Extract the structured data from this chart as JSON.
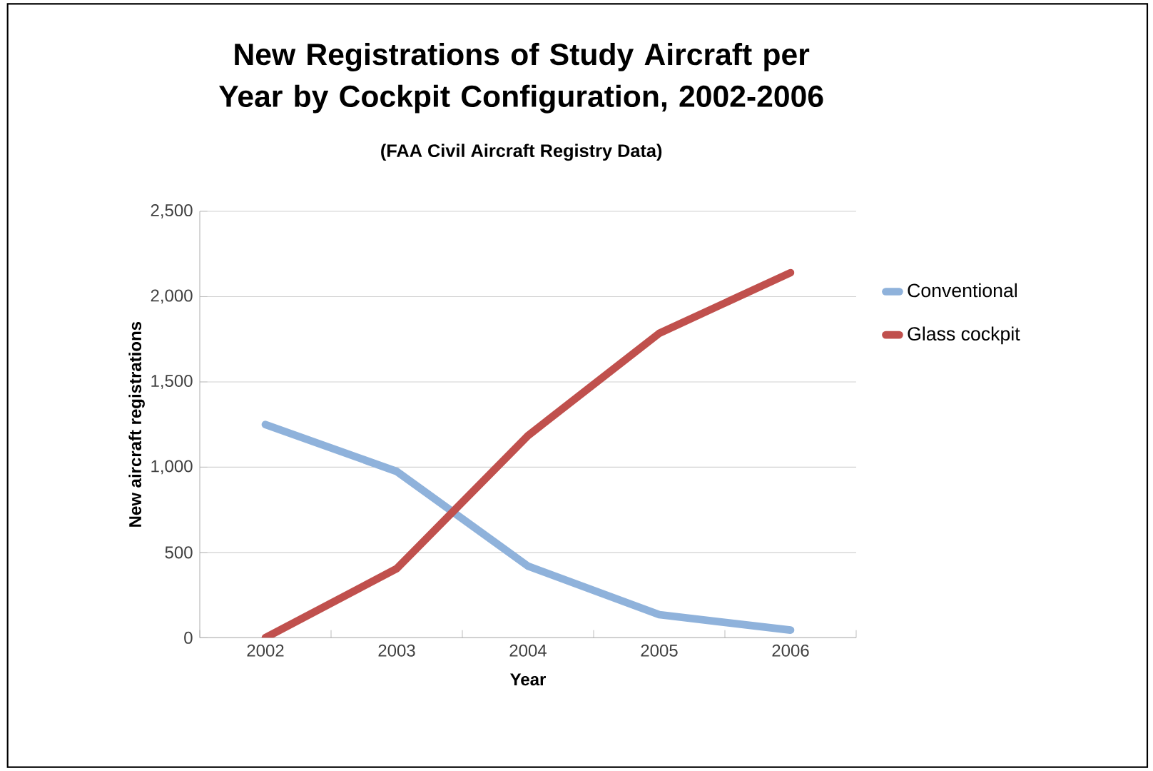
{
  "chart_data": {
    "type": "line",
    "title": "New Registrations of Study Aircraft per Year by Cockpit Configuration, 2002-2006",
    "subtitle": "(FAA Civil Aircraft Registry Data)",
    "xlabel": "Year",
    "ylabel": "New  aircraft registrations",
    "categories": [
      "2002",
      "2003",
      "2004",
      "2005",
      "2006"
    ],
    "series": [
      {
        "name": "Conventional",
        "color": "#8fb2db",
        "values": [
          1250,
          975,
          420,
          135,
          45
        ]
      },
      {
        "name": "Glass cockpit",
        "color": "#c0504d",
        "values": [
          0,
          405,
          1185,
          1785,
          2140
        ]
      }
    ],
    "ylim": [
      0,
      2500
    ],
    "yticks": [
      {
        "value": 0,
        "label": "0"
      },
      {
        "value": 500,
        "label": "500"
      },
      {
        "value": 1000,
        "label": "1,000"
      },
      {
        "value": 1500,
        "label": "1,500"
      },
      {
        "value": 2000,
        "label": "2,000"
      },
      {
        "value": 2500,
        "label": "2,500"
      }
    ],
    "grid": "y",
    "legend": "right"
  }
}
